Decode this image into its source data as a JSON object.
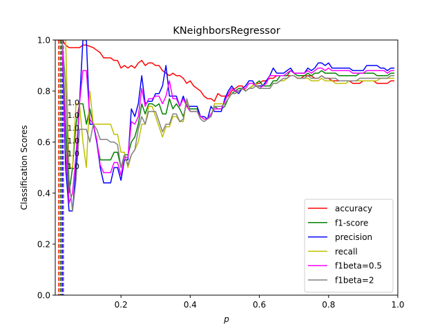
{
  "chart_data": {
    "type": "line",
    "title": "KNeighborsRegressor",
    "xlabel": "p",
    "ylabel": "Classification Scores",
    "xlim": [
      0.01,
      1.0
    ],
    "ylim": [
      0.0,
      1.0
    ],
    "xticks": [
      "0.2",
      "0.4",
      "0.6",
      "0.8",
      "1.0"
    ],
    "yticks": [
      "0.0",
      "0.2",
      "0.4",
      "0.6",
      "0.8",
      "1.0"
    ],
    "grid": false,
    "legend_position": "lower right",
    "x": [
      0.01,
      0.02,
      0.03,
      0.04,
      0.05,
      0.06,
      0.07,
      0.08,
      0.09,
      0.1,
      0.11,
      0.12,
      0.13,
      0.14,
      0.15,
      0.16,
      0.17,
      0.18,
      0.19,
      0.2,
      0.21,
      0.22,
      0.23,
      0.24,
      0.25,
      0.26,
      0.27,
      0.28,
      0.29,
      0.3,
      0.31,
      0.32,
      0.33,
      0.34,
      0.35,
      0.36,
      0.37,
      0.38,
      0.39,
      0.4,
      0.41,
      0.42,
      0.43,
      0.44,
      0.45,
      0.46,
      0.47,
      0.48,
      0.49,
      0.5,
      0.51,
      0.52,
      0.53,
      0.54,
      0.55,
      0.56,
      0.57,
      0.58,
      0.59,
      0.6,
      0.61,
      0.62,
      0.63,
      0.64,
      0.65,
      0.66,
      0.67,
      0.68,
      0.69,
      0.7,
      0.71,
      0.72,
      0.73,
      0.74,
      0.75,
      0.76,
      0.77,
      0.78,
      0.79,
      0.8,
      0.81,
      0.82,
      0.83,
      0.84,
      0.85,
      0.86,
      0.87,
      0.88,
      0.89,
      0.9,
      0.91,
      0.92,
      0.93,
      0.94,
      0.95,
      0.96,
      0.97,
      0.98,
      0.99
    ],
    "series": [
      {
        "name": "accuracy",
        "color": "#ff0000",
        "values": [
          1.0,
          1.0,
          1.0,
          0.98,
          0.97,
          0.97,
          0.97,
          0.97,
          0.98,
          0.98,
          0.975,
          0.97,
          0.96,
          0.95,
          0.93,
          0.93,
          0.93,
          0.92,
          0.92,
          0.89,
          0.9,
          0.89,
          0.9,
          0.89,
          0.91,
          0.92,
          0.9,
          0.91,
          0.91,
          0.9,
          0.9,
          0.88,
          0.87,
          0.86,
          0.87,
          0.86,
          0.86,
          0.85,
          0.83,
          0.84,
          0.82,
          0.81,
          0.8,
          0.78,
          0.77,
          0.77,
          0.76,
          0.79,
          0.78,
          0.78,
          0.78,
          0.8,
          0.81,
          0.82,
          0.82,
          0.8,
          0.81,
          0.82,
          0.83,
          0.83,
          0.84,
          0.84,
          0.85,
          0.85,
          0.86,
          0.86,
          0.86,
          0.86,
          0.86,
          0.86,
          0.85,
          0.85,
          0.86,
          0.86,
          0.86,
          0.85,
          0.85,
          0.86,
          0.85,
          0.85,
          0.84,
          0.84,
          0.84,
          0.84,
          0.84,
          0.84,
          0.83,
          0.83,
          0.83,
          0.84,
          0.84,
          0.84,
          0.84,
          0.83,
          0.83,
          0.83,
          0.83,
          0.84,
          0.84
        ]
      },
      {
        "name": "f1-score",
        "color": "#008000",
        "values": [
          null,
          null,
          1.0,
          0.67,
          0.4,
          0.5,
          0.67,
          0.75,
          0.75,
          0.67,
          0.73,
          0.67,
          0.6,
          0.53,
          0.53,
          0.53,
          0.53,
          0.56,
          0.56,
          0.5,
          0.55,
          0.55,
          0.6,
          0.62,
          0.67,
          0.75,
          0.71,
          0.75,
          0.75,
          0.74,
          0.75,
          0.71,
          0.71,
          0.77,
          0.73,
          0.75,
          0.73,
          0.7,
          0.75,
          0.73,
          0.73,
          0.73,
          0.7,
          0.69,
          0.69,
          0.7,
          0.74,
          0.73,
          0.73,
          0.74,
          0.77,
          0.79,
          0.8,
          0.81,
          0.81,
          0.8,
          0.81,
          0.82,
          0.83,
          0.84,
          0.82,
          0.82,
          0.82,
          0.84,
          0.84,
          0.86,
          0.86,
          0.86,
          0.88,
          0.87,
          0.86,
          0.86,
          0.86,
          0.87,
          0.86,
          0.87,
          0.87,
          0.88,
          0.87,
          0.87,
          0.87,
          0.87,
          0.86,
          0.86,
          0.86,
          0.86,
          0.86,
          0.86,
          0.87,
          0.87,
          0.87,
          0.87,
          0.87,
          0.86,
          0.86,
          0.86,
          0.86,
          0.87,
          0.87
        ]
      },
      {
        "name": "precision",
        "color": "#0000ff",
        "values": [
          null,
          null,
          1.0,
          0.5,
          0.33,
          0.33,
          0.5,
          0.75,
          1.0,
          1.0,
          0.67,
          0.67,
          0.6,
          0.5,
          0.44,
          0.44,
          0.44,
          0.5,
          0.5,
          0.45,
          0.53,
          0.53,
          0.73,
          0.7,
          0.75,
          0.86,
          0.75,
          0.76,
          0.76,
          0.79,
          0.79,
          0.82,
          0.9,
          0.78,
          0.78,
          0.78,
          0.74,
          0.78,
          0.74,
          0.74,
          0.74,
          0.74,
          0.7,
          0.7,
          0.69,
          0.74,
          0.72,
          0.72,
          0.72,
          0.77,
          0.8,
          0.82,
          0.8,
          0.79,
          0.81,
          0.82,
          0.84,
          0.84,
          0.82,
          0.82,
          0.82,
          0.84,
          0.86,
          0.89,
          0.87,
          0.87,
          0.87,
          0.88,
          0.89,
          0.87,
          0.87,
          0.87,
          0.87,
          0.89,
          0.88,
          0.89,
          0.91,
          0.91,
          0.9,
          0.91,
          0.89,
          0.89,
          0.89,
          0.89,
          0.89,
          0.89,
          0.88,
          0.88,
          0.88,
          0.88,
          0.9,
          0.9,
          0.9,
          0.9,
          0.89,
          0.89,
          0.88,
          0.89,
          0.89
        ]
      },
      {
        "name": "recall",
        "color": "#bfbf00",
        "values": [
          null,
          null,
          1.0,
          1.0,
          0.5,
          0.5,
          0.75,
          0.75,
          0.6,
          0.5,
          0.8,
          0.67,
          0.67,
          0.67,
          0.67,
          0.67,
          0.67,
          0.63,
          0.63,
          0.56,
          0.56,
          0.5,
          0.55,
          0.57,
          0.6,
          0.67,
          0.67,
          0.74,
          0.74,
          0.7,
          0.66,
          0.62,
          0.66,
          0.66,
          0.7,
          0.7,
          0.68,
          0.68,
          0.76,
          0.72,
          0.72,
          0.72,
          0.7,
          0.69,
          0.69,
          0.7,
          0.75,
          0.75,
          0.75,
          0.75,
          0.77,
          0.79,
          0.79,
          0.8,
          0.81,
          0.8,
          0.81,
          0.82,
          0.83,
          0.81,
          0.81,
          0.81,
          0.81,
          0.83,
          0.83,
          0.84,
          0.84,
          0.85,
          0.86,
          0.86,
          0.85,
          0.85,
          0.85,
          0.85,
          0.84,
          0.84,
          0.84,
          0.85,
          0.84,
          0.84,
          0.84,
          0.83,
          0.83,
          0.83,
          0.83,
          0.84,
          0.84,
          0.84,
          0.84,
          0.84,
          0.84,
          0.84,
          0.84,
          0.84,
          0.85,
          0.85,
          0.85,
          0.85,
          0.85
        ]
      },
      {
        "name": "f1beta=0.5",
        "color": "#ff00ff",
        "values": [
          null,
          null,
          1.0,
          0.57,
          0.36,
          0.4,
          0.55,
          0.75,
          0.88,
          0.88,
          0.69,
          0.67,
          0.61,
          0.51,
          0.48,
          0.48,
          0.48,
          0.52,
          0.52,
          0.47,
          0.54,
          0.54,
          0.68,
          0.67,
          0.7,
          0.81,
          0.74,
          0.77,
          0.77,
          0.78,
          0.78,
          0.75,
          0.78,
          0.84,
          0.77,
          0.77,
          0.74,
          0.77,
          0.74,
          0.72,
          0.72,
          0.72,
          0.7,
          0.69,
          0.69,
          0.71,
          0.73,
          0.73,
          0.73,
          0.76,
          0.79,
          0.81,
          0.8,
          0.8,
          0.81,
          0.81,
          0.83,
          0.83,
          0.82,
          0.81,
          0.82,
          0.83,
          0.86,
          0.86,
          0.86,
          0.86,
          0.86,
          0.87,
          0.88,
          0.87,
          0.87,
          0.87,
          0.87,
          0.88,
          0.87,
          0.88,
          0.89,
          0.89,
          0.88,
          0.89,
          0.88,
          0.88,
          0.88,
          0.88,
          0.88,
          0.88,
          0.87,
          0.87,
          0.87,
          0.87,
          0.88,
          0.88,
          0.88,
          0.88,
          0.88,
          0.88,
          0.87,
          0.88,
          0.88
        ]
      },
      {
        "name": "f1beta=2",
        "color": "#808080",
        "values": [
          null,
          null,
          1.0,
          0.83,
          0.45,
          0.33,
          0.45,
          0.65,
          0.65,
          0.65,
          0.6,
          0.67,
          0.65,
          0.61,
          0.61,
          0.61,
          0.6,
          0.6,
          0.59,
          0.5,
          0.55,
          0.51,
          0.55,
          0.57,
          0.65,
          0.7,
          0.67,
          0.72,
          0.72,
          0.72,
          0.68,
          0.64,
          0.67,
          0.67,
          0.71,
          0.71,
          0.68,
          0.69,
          0.77,
          0.72,
          0.72,
          0.72,
          0.69,
          0.68,
          0.69,
          0.7,
          0.74,
          0.74,
          0.74,
          0.75,
          0.77,
          0.79,
          0.79,
          0.8,
          0.81,
          0.8,
          0.81,
          0.81,
          0.82,
          0.81,
          0.81,
          0.81,
          0.81,
          0.83,
          0.83,
          0.84,
          0.85,
          0.85,
          0.86,
          0.86,
          0.85,
          0.85,
          0.85,
          0.86,
          0.85,
          0.85,
          0.85,
          0.86,
          0.85,
          0.85,
          0.85,
          0.85,
          0.84,
          0.84,
          0.84,
          0.84,
          0.84,
          0.84,
          0.85,
          0.85,
          0.85,
          0.85,
          0.85,
          0.85,
          0.85,
          0.85,
          0.85,
          0.86,
          0.86
        ]
      }
    ],
    "dashed_lines": [
      {
        "series": "accuracy",
        "x": 0.02,
        "color": "#ff0000"
      },
      {
        "series": "f1-score",
        "x": 0.025,
        "color": "#008000"
      },
      {
        "series": "precision",
        "x": 0.03,
        "color": "#0000ff"
      },
      {
        "series": "recall",
        "x": 0.02,
        "color": "#bfbf00"
      },
      {
        "series": "f1beta=0.5",
        "x": 0.025,
        "color": "#ff00ff"
      },
      {
        "series": "f1beta=2",
        "x": 0.03,
        "color": "#808080"
      }
    ],
    "annotations": [
      {
        "text": "1.0",
        "x": 0.045,
        "y": 0.745,
        "color": "#808080"
      },
      {
        "text": "1.0",
        "x": 0.045,
        "y": 0.695,
        "color": "#ff00ff"
      },
      {
        "text": "1.0",
        "x": 0.045,
        "y": 0.645,
        "color": "#bfbf00"
      },
      {
        "text": "1.0",
        "x": 0.045,
        "y": 0.595,
        "color": "#0000ff"
      },
      {
        "text": "1.0",
        "x": 0.045,
        "y": 0.545,
        "color": "#008000"
      },
      {
        "text": "1.0",
        "x": 0.045,
        "y": 0.495,
        "color": "#ff0000"
      }
    ]
  }
}
